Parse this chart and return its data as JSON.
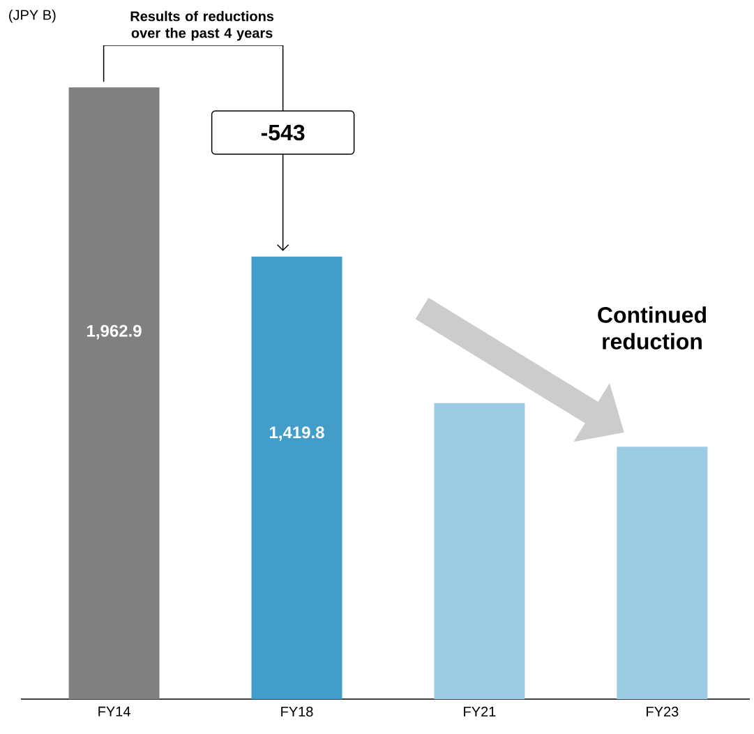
{
  "chart_data": {
    "type": "bar",
    "ylabel": "(JPY B)",
    "categories": [
      "FY14",
      "FY18",
      "FY21",
      "FY23"
    ],
    "values": [
      1962.9,
      1419.8,
      950,
      810
    ],
    "value_labels": [
      "1,962.9",
      "1,419.8",
      null,
      null
    ],
    "colors": [
      "#808080",
      "#429dc9",
      "#9ccbe4",
      "#9ccbe4"
    ],
    "annotations": [
      "Results of reductions over the past 4 years",
      "-543",
      "Continued reduction"
    ]
  }
}
